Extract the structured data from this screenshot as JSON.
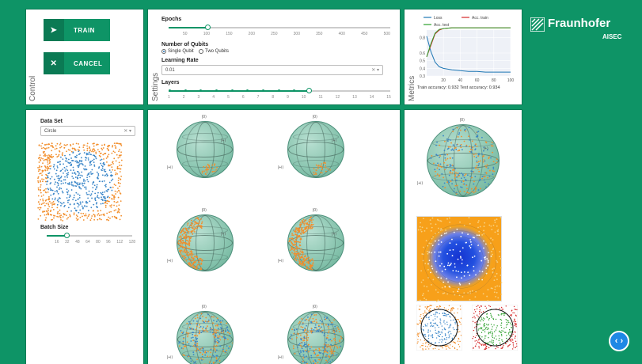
{
  "logo": {
    "name": "Fraunhofer",
    "sub": "AISEC"
  },
  "control": {
    "label": "Control",
    "train_label": "TRAIN",
    "cancel_label": "CANCEL",
    "train_icon": "play-arrow-icon",
    "cancel_icon": "close-icon"
  },
  "settings": {
    "label": "Settings",
    "epochs": {
      "label": "Epochs",
      "value": 100,
      "ticks": [
        "50",
        "100",
        "150",
        "200",
        "250",
        "300",
        "350",
        "400",
        "450",
        "500"
      ]
    },
    "qubits": {
      "label": "Number of Qubits",
      "options": [
        "Single Qubit",
        "Two Qubits"
      ],
      "selected": "Single Qubit"
    },
    "learning_rate": {
      "label": "Learning Rate",
      "value": "0.01"
    },
    "layers": {
      "label": "Layers",
      "value": 10,
      "ticks": [
        "1",
        "2",
        "3",
        "4",
        "5",
        "6",
        "7",
        "8",
        "9",
        "10",
        "11",
        "12",
        "13",
        "14",
        "15"
      ]
    }
  },
  "metrics": {
    "label": "Metrics",
    "legend": [
      "Loss",
      "Acc. train",
      "Acc. test"
    ],
    "colors": {
      "loss": "#1f77b4",
      "acc_train": "#d62728",
      "acc_test": "#2ca02c"
    },
    "chart_data": {
      "type": "line",
      "x": [
        0,
        5,
        10,
        15,
        20,
        30,
        40,
        50,
        60,
        70,
        80,
        90,
        100
      ],
      "series": [
        {
          "name": "Loss",
          "values": [
            0.82,
            0.62,
            0.48,
            0.42,
            0.4,
            0.38,
            0.37,
            0.36,
            0.36,
            0.35,
            0.35,
            0.35,
            0.35
          ]
        },
        {
          "name": "Acc. train",
          "values": [
            0.55,
            0.7,
            0.85,
            0.9,
            0.92,
            0.93,
            0.93,
            0.93,
            0.93,
            0.93,
            0.93,
            0.93,
            0.93
          ]
        },
        {
          "name": "Acc. test",
          "values": [
            0.55,
            0.72,
            0.86,
            0.91,
            0.92,
            0.93,
            0.93,
            0.93,
            0.93,
            0.93,
            0.93,
            0.93,
            0.93
          ]
        }
      ],
      "xticks": [
        "20",
        "40",
        "60",
        "80",
        "100"
      ],
      "yticks": [
        "0.3",
        "0.4",
        "0.5",
        "0.6",
        "0.8"
      ],
      "ylim": [
        0.3,
        0.9
      ]
    },
    "caption": "Train accuracy: 0.932 Test accuracy: 0.934"
  },
  "dataset": {
    "label": "Data Set",
    "value": "Circle",
    "batch_label": "Batch Size",
    "batch_value": 32,
    "batch_ticks": [
      "16",
      "32",
      "48",
      "64",
      "80",
      "96",
      "112",
      "128"
    ]
  },
  "bloch": {
    "axis_top": "|0⟩",
    "axis_side": "|+⟩",
    "axis_left": "|+i⟩"
  }
}
